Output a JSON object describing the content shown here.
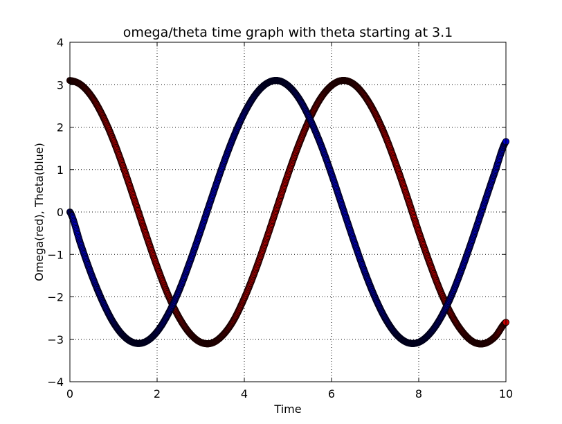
{
  "chart_data": {
    "type": "scatter",
    "title": "omega/theta time graph with theta starting at 3.1",
    "xlabel": "Time",
    "ylabel": "Omega(red), Theta(blue)",
    "xlim": [
      0,
      10
    ],
    "ylim": [
      -4,
      4
    ],
    "grid": true,
    "x_ticks": [
      0,
      2,
      4,
      6,
      8,
      10
    ],
    "y_ticks": [
      -4,
      -3,
      -2,
      -1,
      0,
      1,
      2,
      3,
      4
    ],
    "x_tick_labels": [
      "0",
      "2",
      "4",
      "6",
      "8",
      "10"
    ],
    "y_tick_labels": [
      "−4",
      "−3",
      "−2",
      "−1",
      "0",
      "1",
      "2",
      "3",
      "4"
    ],
    "series": [
      {
        "name": "Omega",
        "color": "#cc0000",
        "edge_color": "#1a0000",
        "x": [
          0,
          0.25,
          0.5,
          0.75,
          1,
          1.25,
          1.5,
          1.75,
          2,
          2.25,
          2.5,
          2.75,
          3,
          3.25,
          3.5,
          3.75,
          4,
          4.25,
          4.5,
          4.75,
          5,
          5.25,
          5.5,
          5.75,
          6,
          6.25,
          6.5,
          6.75,
          7,
          7.25,
          7.5,
          7.75,
          8,
          8.25,
          8.5,
          8.75,
          9,
          9.25,
          9.5,
          9.75,
          10
        ],
        "y": [
          3.1,
          3.0,
          2.72,
          2.27,
          1.68,
          0.98,
          0.22,
          -0.55,
          -1.29,
          -1.95,
          -2.48,
          -2.86,
          -3.07,
          -3.09,
          -2.91,
          -2.56,
          -2.03,
          -1.39,
          -0.66,
          0.11,
          0.88,
          1.59,
          2.2,
          2.68,
          2.98,
          3.1,
          3.02,
          2.75,
          2.32,
          1.75,
          1.06,
          0.31,
          -0.47,
          -1.2,
          -1.87,
          -2.42,
          -2.82,
          -3.06,
          -3.1,
          -2.94,
          -2.6
        ]
      },
      {
        "name": "Theta",
        "color": "#0000cc",
        "edge_color": "#00001a",
        "x": [
          0,
          0.25,
          0.5,
          0.75,
          1,
          1.25,
          1.5,
          1.75,
          2,
          2.25,
          2.5,
          2.75,
          3,
          3.25,
          3.5,
          3.75,
          4,
          4.25,
          4.5,
          4.75,
          5,
          5.25,
          5.5,
          5.75,
          6,
          6.25,
          6.5,
          6.75,
          7,
          7.25,
          7.5,
          7.75,
          8,
          8.25,
          8.5,
          8.75,
          9,
          9.25,
          9.5,
          9.75,
          10
        ],
        "y": [
          0,
          -0.77,
          -1.49,
          -2.11,
          -2.61,
          -2.94,
          -3.09,
          -3.05,
          -2.82,
          -2.41,
          -1.86,
          -1.18,
          -0.44,
          0.33,
          1.08,
          1.76,
          2.33,
          2.76,
          3.02,
          3.1,
          2.98,
          2.68,
          2.2,
          1.6,
          0.89,
          0.12,
          -0.65,
          -1.38,
          -2.02,
          -2.54,
          -2.9,
          -3.08,
          -3.07,
          -2.87,
          -2.5,
          -1.97,
          -1.31,
          -0.58,
          0.19,
          0.95,
          1.66
        ]
      }
    ]
  }
}
